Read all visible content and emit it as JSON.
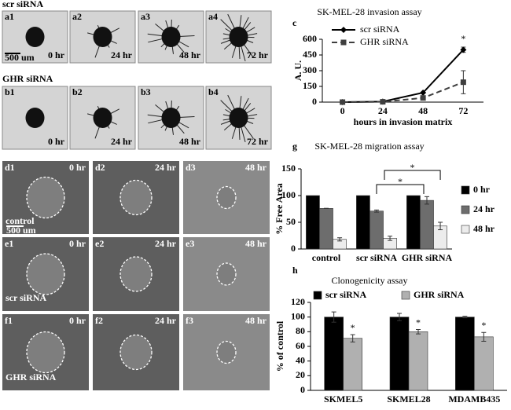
{
  "image_panels": {
    "row_a_label": "scr siRNA",
    "row_b_label": "GHR siRNA",
    "scale_ab": "500 um",
    "scale_d": "500 um",
    "a": [
      {
        "id": "a1",
        "time": "0 hr"
      },
      {
        "id": "a2",
        "time": "24 hr"
      },
      {
        "id": "a3",
        "time": "48 hr"
      },
      {
        "id": "a4",
        "time": "72 hr"
      }
    ],
    "b": [
      {
        "id": "b1",
        "time": "0 hr"
      },
      {
        "id": "b2",
        "time": "24 hr"
      },
      {
        "id": "b3",
        "time": "48 hr"
      },
      {
        "id": "b4",
        "time": "72 hr"
      }
    ],
    "d": [
      {
        "id": "d1",
        "time": "0 hr"
      },
      {
        "id": "d2",
        "time": "24 hr"
      },
      {
        "id": "d3",
        "time": "48 hr"
      }
    ],
    "e": [
      {
        "id": "e1",
        "time": "0 hr"
      },
      {
        "id": "e2",
        "time": "24 hr"
      },
      {
        "id": "e3",
        "time": "48 hr"
      }
    ],
    "f": [
      {
        "id": "f1",
        "time": "0 hr"
      },
      {
        "id": "f2",
        "time": "24 hr"
      },
      {
        "id": "f3",
        "time": "48 hr"
      }
    ],
    "row_labels_def": [
      "control",
      "scr siRNA",
      "GHR siRNA"
    ]
  },
  "chart_data": [
    {
      "panel": "c",
      "type": "line",
      "title": "SK-MEL-28 invasion assay",
      "x_label": "hours in invasion matrix",
      "y_label": "A. U.",
      "categories": [
        "0",
        "24",
        "48",
        "72"
      ],
      "series": [
        {
          "name": "scr siRNA",
          "color": "#000000",
          "marker": "diamond",
          "dash": "solid",
          "values": [
            0,
            5,
            90,
            500
          ],
          "errors": [
            0,
            0,
            0,
            25
          ]
        },
        {
          "name": "GHR siRNA",
          "color": "#3f3f3f",
          "marker": "square",
          "dash": "dashed",
          "values": [
            0,
            3,
            40,
            190
          ],
          "errors": [
            0,
            0,
            15,
            110
          ]
        }
      ],
      "ylim": [
        0,
        600
      ],
      "yticks": [
        0,
        150,
        300,
        450,
        600
      ],
      "grid": false,
      "legend": "top-left",
      "annotations": [
        "*"
      ]
    },
    {
      "panel": "g",
      "type": "bar",
      "title": "SK-MEL-28 migration assay",
      "y_label": "% Free Area",
      "categories": [
        "control",
        "scr siRNA",
        "GHR siRNA"
      ],
      "series": [
        {
          "name": "0 hr",
          "color": "#000000",
          "values": [
            100,
            100,
            100
          ]
        },
        {
          "name": "24 hr",
          "color": "#6d6d6d",
          "values": [
            76,
            71,
            91
          ],
          "errors": [
            0,
            2,
            7
          ]
        },
        {
          "name": "48 hr",
          "color": "#ececec",
          "values": [
            18,
            20,
            43
          ],
          "errors": [
            3,
            4,
            7
          ]
        }
      ],
      "ylim": [
        0,
        150
      ],
      "yticks": [
        0,
        50,
        100,
        150
      ],
      "grid": false,
      "legend": "right",
      "annotations": [
        "*",
        "*"
      ]
    },
    {
      "panel": "h",
      "type": "bar",
      "title": "Clonogenicity assay",
      "y_label": "% of control",
      "categories": [
        "SKMEL5",
        "SKMEL28",
        "MDAMB435"
      ],
      "series": [
        {
          "name": "scr siRNA",
          "color": "#000000",
          "values": [
            100,
            100,
            100
          ],
          "errors": [
            7,
            5,
            1
          ]
        },
        {
          "name": "GHR siRNA",
          "color": "#b0b0b0",
          "values": [
            71,
            80,
            73
          ],
          "errors": [
            5,
            3,
            6
          ]
        }
      ],
      "ylim": [
        0,
        120
      ],
      "yticks": [
        0,
        20,
        40,
        60,
        80,
        100,
        120
      ],
      "grid": false,
      "legend": "top",
      "annotations": [
        "*",
        "*",
        "*"
      ]
    }
  ]
}
